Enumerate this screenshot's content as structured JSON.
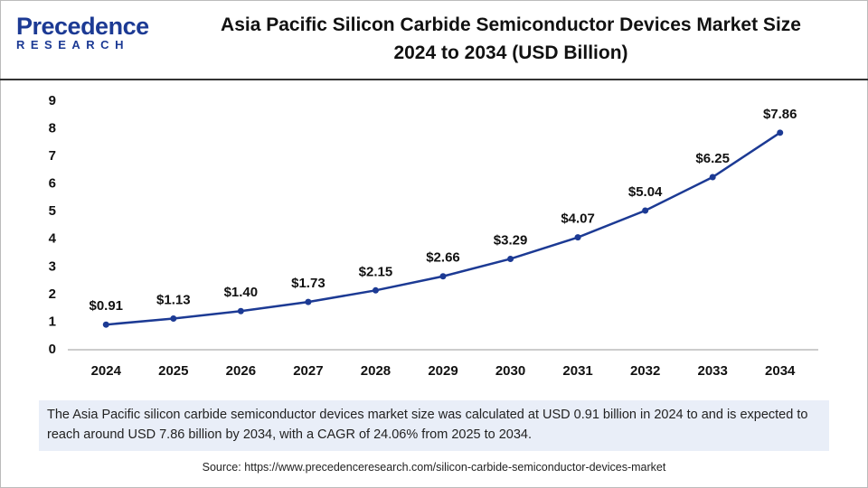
{
  "logo": {
    "name": "Precedence",
    "tagline": "RESEARCH"
  },
  "chart_data": {
    "type": "line",
    "title": [
      "Asia Pacific Silicon Carbide Semiconductor Devices Market Size",
      "2024 to 2034 (USD Billion)"
    ],
    "categories": [
      "2024",
      "2025",
      "2026",
      "2027",
      "2028",
      "2029",
      "2030",
      "2031",
      "2032",
      "2033",
      "2034"
    ],
    "series": [
      {
        "name": "Market Size",
        "color": "#1c3a94",
        "values": [
          0.91,
          1.13,
          1.4,
          1.73,
          2.15,
          2.66,
          3.29,
          4.07,
          5.04,
          6.25,
          7.86
        ],
        "value_labels": [
          "$0.91",
          "$1.13",
          "$1.40",
          "$1.73",
          "$2.15",
          "$2.66",
          "$3.29",
          "$4.07",
          "$5.04",
          "$6.25",
          "$7.86"
        ]
      }
    ],
    "ylim": [
      0,
      9
    ],
    "yticks": [
      0,
      1,
      2,
      3,
      4,
      5,
      6,
      7,
      8,
      9
    ],
    "grid": false,
    "legend": false
  },
  "description": "The  Asia Pacific silicon carbide semiconductor devices market size was calculated at USD 0.91 billion in 2024 to and is expected to reach around USD 7.86 billion by 2034, with a CAGR of 24.06% from 2025 to 2034.",
  "source": "Source: https://www.precedenceresearch.com/silicon-carbide-semiconductor-devices-market"
}
